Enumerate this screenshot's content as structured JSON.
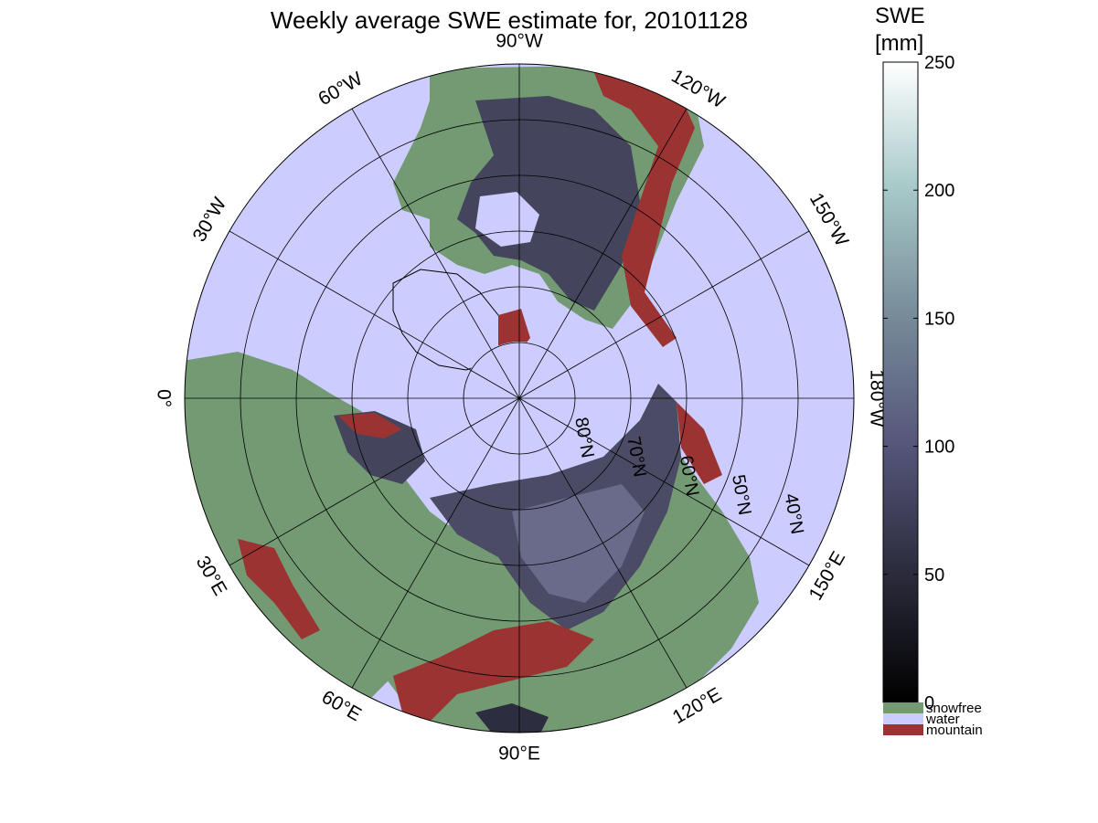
{
  "title": "Weekly average SWE estimate for, 20101128",
  "colors": {
    "water": "#ccccff",
    "snowfree": "#739a73",
    "mountain": "#9b3333",
    "snow_dark": "#3f3f55",
    "snow_mid": "#6a6a8a",
    "grid": "#000000"
  },
  "longitude_labels": [
    {
      "text": "90°W",
      "lon": -90
    },
    {
      "text": "120°W",
      "lon": -120
    },
    {
      "text": "150°W",
      "lon": -150
    },
    {
      "text": "180°W",
      "lon": 180
    },
    {
      "text": "150°E",
      "lon": 150
    },
    {
      "text": "120°E",
      "lon": 120
    },
    {
      "text": "90°E",
      "lon": 90
    },
    {
      "text": "60°E",
      "lon": 60
    },
    {
      "text": "30°E",
      "lon": 30
    },
    {
      "text": "0°",
      "lon": 0
    },
    {
      "text": "30°W",
      "lon": -30
    },
    {
      "text": "60°W",
      "lon": -60
    }
  ],
  "latitude_labels": [
    {
      "text": "80°N",
      "lat": 80
    },
    {
      "text": "70°N",
      "lat": 70
    },
    {
      "text": "60°N",
      "lat": 60
    },
    {
      "text": "50°N",
      "lat": 50
    },
    {
      "text": "40°N",
      "lat": 40
    }
  ],
  "colorbar": {
    "title_line1": "SWE",
    "title_line2": "[mm]",
    "min": 0,
    "max": 250,
    "ticks": [
      "250",
      "200",
      "150",
      "100",
      "50",
      "0"
    ],
    "tick_values": [
      250,
      200,
      150,
      100,
      50,
      0
    ]
  },
  "legend": [
    {
      "label": "snowfree",
      "color": "#739a73"
    },
    {
      "label": "water",
      "color": "#ccccff"
    },
    {
      "label": "mountain",
      "color": "#9b3333"
    }
  ]
}
